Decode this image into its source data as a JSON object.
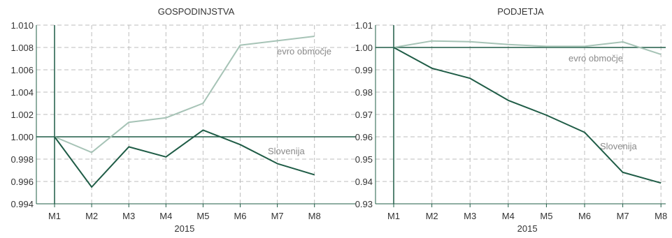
{
  "colors": {
    "slovenia": "#1f5c46",
    "euro": "#a6c3b6",
    "axis": "#1f5c46",
    "grid": "#bdbdbd",
    "text": "#333333"
  },
  "chart_data": [
    {
      "type": "line",
      "title": "GOSPODINJSTVA",
      "categories": [
        "M1",
        "M2",
        "M3",
        "M4",
        "M5",
        "M6",
        "M7",
        "M8"
      ],
      "xlabel": "2015",
      "ylabel": "",
      "ylim": [
        0.994,
        1.01
      ],
      "yticks": [
        "0.994",
        "0.996",
        "0.998",
        "1.000",
        "1.002",
        "1.004",
        "1.006",
        "1.008",
        "1.010"
      ],
      "baseline": 1.0,
      "grid": true,
      "series": [
        {
          "name": "evro območje",
          "color_key": "euro",
          "values": [
            1.0,
            0.9986,
            1.0013,
            1.0017,
            1.003,
            1.0082,
            1.0086,
            1.009
          ]
        },
        {
          "name": "Slovenija",
          "color_key": "slovenia",
          "values": [
            1.0,
            0.9955,
            0.9991,
            0.9982,
            1.0006,
            0.9993,
            0.9976,
            0.9966
          ]
        }
      ]
    },
    {
      "type": "line",
      "title": "PODJETJA",
      "categories": [
        "M1",
        "M2",
        "M3",
        "M4",
        "M5",
        "M6",
        "M7",
        "M8"
      ],
      "xlabel": "2015",
      "ylabel": "",
      "ylim": [
        0.93,
        1.01
      ],
      "yticks": [
        "0.93",
        "0.94",
        "0.95",
        "0.96",
        "0.97",
        "0.98",
        "0.99",
        "1.00",
        "1.01"
      ],
      "baseline": 1.0,
      "grid": true,
      "series": [
        {
          "name": "evro območje",
          "color_key": "euro",
          "values": [
            1.0,
            1.0029,
            1.0026,
            1.0013,
            1.0005,
            1.0005,
            1.0025,
            0.9969
          ]
        },
        {
          "name": "Slovenija",
          "color_key": "slovenia",
          "values": [
            1.0,
            0.9907,
            0.9862,
            0.9763,
            0.9697,
            0.962,
            0.9441,
            0.9393
          ]
        }
      ]
    }
  ]
}
